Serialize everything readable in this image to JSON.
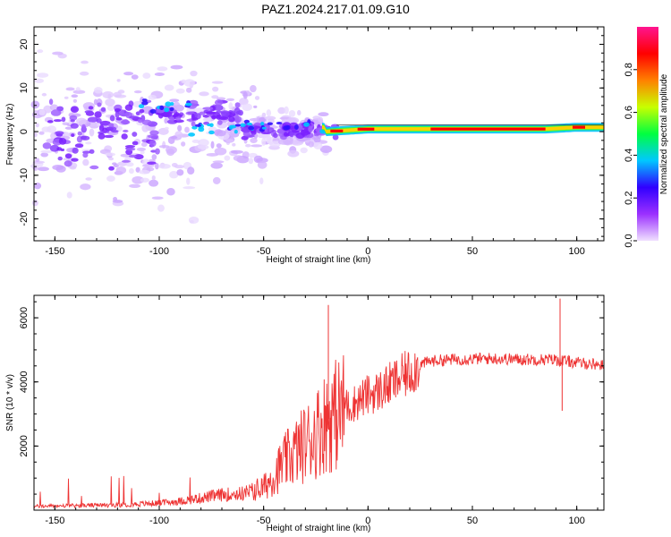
{
  "title": "PAZ1.2024.217.01.09.G10",
  "chart_data": [
    {
      "type": "heatmap",
      "xlabel": "Height of straight line (km)",
      "ylabel": "Frequency (Hz)",
      "xlim": [
        -160,
        113
      ],
      "ylim": [
        -25,
        24
      ],
      "xticks": [
        -150,
        -100,
        -50,
        0,
        50,
        100
      ],
      "yticks": [
        -20,
        -10,
        0,
        10,
        20
      ],
      "colorbar": {
        "label": "Normalized spectral amplitude",
        "range": [
          0,
          1
        ],
        "ticks": [
          "0.0",
          "0.2",
          "0.4",
          "0.6",
          "0.8"
        ],
        "colors": [
          "#f0e0ff",
          "#9b30ff",
          "#3000ff",
          "#00c8ff",
          "#00ff40",
          "#c8ff00",
          "#ff8000",
          "#ff0000",
          "#ff1490"
        ]
      },
      "line_center": [
        {
          "x": -20,
          "y": 0.0
        },
        {
          "x": 0,
          "y": 0.6
        },
        {
          "x": 20,
          "y": 0.6
        },
        {
          "x": 50,
          "y": 0.6
        },
        {
          "x": 85,
          "y": 0.6
        },
        {
          "x": 100,
          "y": 1.0
        },
        {
          "x": 113,
          "y": 1.0
        }
      ]
    },
    {
      "type": "line",
      "xlabel": "Height of straight line (km)",
      "ylabel": "SNR (10 * v/v)",
      "xlim": [
        -160,
        113
      ],
      "ylim": [
        0,
        6700
      ],
      "xticks": [
        -150,
        -100,
        -50,
        0,
        50,
        100
      ],
      "yticks": [
        2000,
        4000,
        6000
      ],
      "color": "#ee3333",
      "series": [
        {
          "values": [
            {
              "x": -160,
              "y": 120
            },
            {
              "x": -140,
              "y": 140
            },
            {
              "x": -120,
              "y": 160
            },
            {
              "x": -100,
              "y": 220
            },
            {
              "x": -90,
              "y": 280
            },
            {
              "x": -80,
              "y": 380
            },
            {
              "x": -70,
              "y": 480
            },
            {
              "x": -60,
              "y": 520
            },
            {
              "x": -50,
              "y": 700
            },
            {
              "x": -45,
              "y": 1100
            },
            {
              "x": -40,
              "y": 1500
            },
            {
              "x": -35,
              "y": 1800
            },
            {
              "x": -30,
              "y": 2100
            },
            {
              "x": -25,
              "y": 2400
            },
            {
              "x": -20,
              "y": 2800
            },
            {
              "x": -15,
              "y": 3000
            },
            {
              "x": -10,
              "y": 3200
            },
            {
              "x": -5,
              "y": 3400
            },
            {
              "x": 0,
              "y": 3600
            },
            {
              "x": 5,
              "y": 3700
            },
            {
              "x": 10,
              "y": 3900
            },
            {
              "x": 15,
              "y": 4100
            },
            {
              "x": 20,
              "y": 4300
            },
            {
              "x": 25,
              "y": 4550
            },
            {
              "x": 30,
              "y": 4650
            },
            {
              "x": 40,
              "y": 4700
            },
            {
              "x": 50,
              "y": 4720
            },
            {
              "x": 60,
              "y": 4730
            },
            {
              "x": 70,
              "y": 4710
            },
            {
              "x": 80,
              "y": 4700
            },
            {
              "x": 88,
              "y": 4700
            },
            {
              "x": 95,
              "y": 4650
            },
            {
              "x": 100,
              "y": 4600
            },
            {
              "x": 110,
              "y": 4550
            },
            {
              "x": 113,
              "y": 4500
            }
          ]
        }
      ],
      "spikes": [
        {
          "x": -19,
          "y": 6400
        },
        {
          "x": -18,
          "y": 1800
        },
        {
          "x": 92,
          "y": 6600
        },
        {
          "x": 93,
          "y": 3100
        }
      ]
    }
  ]
}
